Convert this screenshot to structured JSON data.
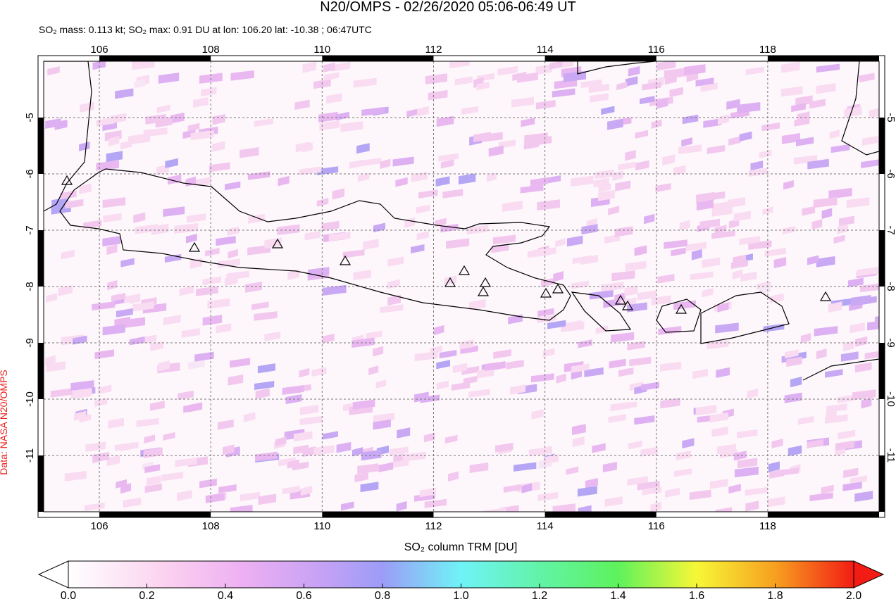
{
  "header": {
    "title": "N20/OMPS - 02/26/2020 05:06-06:49 UT",
    "subtitle": "SO₂ mass: 0.113 kt; SO₂ max: 0.91 DU at lon: 106.20 lat: -10.38 ; 06:47UTC"
  },
  "map": {
    "lon_range": [
      105,
      120
    ],
    "lat_range": [
      -12,
      -4
    ],
    "lon_ticks": [
      106,
      108,
      110,
      112,
      114,
      116,
      118
    ],
    "lat_ticks": [
      -5,
      -6,
      -7,
      -8,
      -9,
      -10,
      -11
    ],
    "credit": "Data: NASA N20/OMPS"
  },
  "colorbar": {
    "label": "SO₂ column TRM [DU]",
    "range": [
      0,
      2
    ],
    "ticks": [
      {
        "value": 0,
        "label": "0.0"
      },
      0.2,
      0.4,
      0.6,
      0.8,
      {
        "value": 1,
        "label": "1.0"
      },
      1.2,
      1.4,
      1.6,
      1.8,
      {
        "value": 2,
        "label": "2.0"
      }
    ]
  }
}
